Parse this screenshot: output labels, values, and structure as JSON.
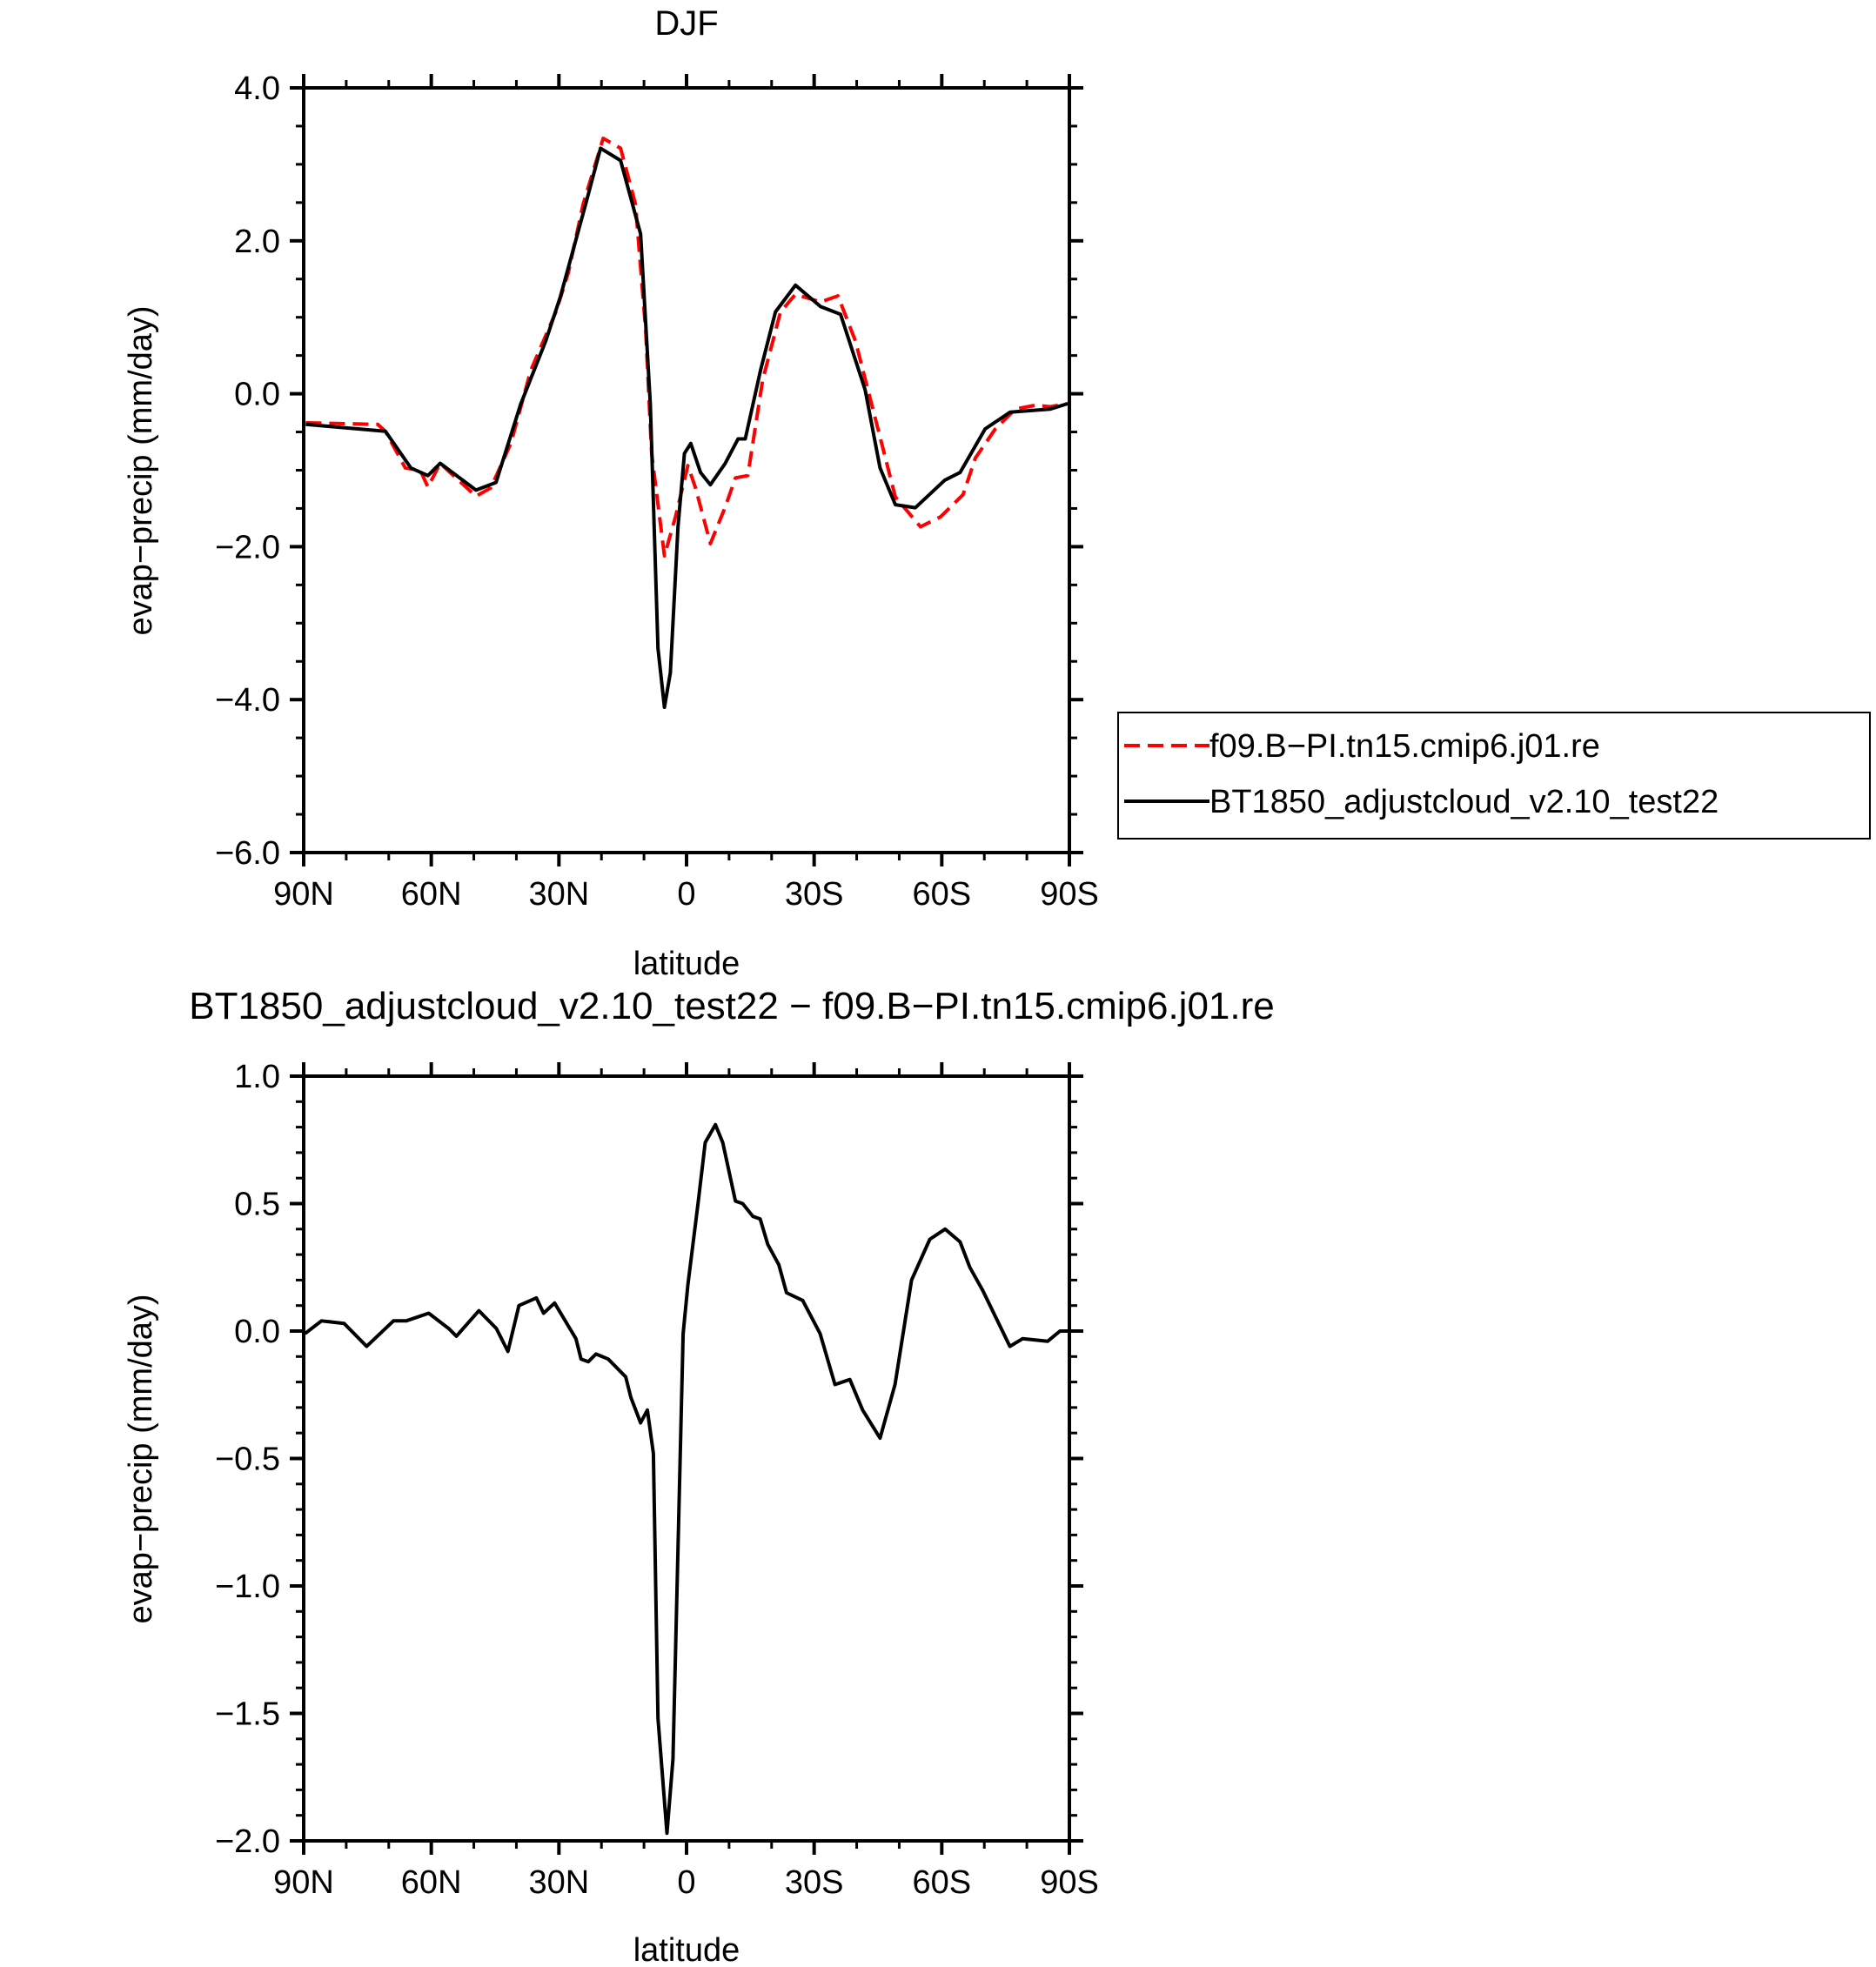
{
  "chart_data": [
    {
      "type": "line",
      "title": "DJF",
      "xlabel": "latitude",
      "ylabel": "evap−precip (mm/day)",
      "xlim": [
        90,
        -90
      ],
      "ylim": [
        -6,
        4
      ],
      "xticks": [
        {
          "v": 90,
          "label": "90N"
        },
        {
          "v": 60,
          "label": "60N"
        },
        {
          "v": 30,
          "label": "30N"
        },
        {
          "v": 0,
          "label": "0"
        },
        {
          "v": -30,
          "label": "30S"
        },
        {
          "v": -60,
          "label": "60S"
        },
        {
          "v": -90,
          "label": "90S"
        }
      ],
      "yticks": [
        {
          "v": 4,
          "label": "4.0"
        },
        {
          "v": 2,
          "label": "2.0"
        },
        {
          "v": 0,
          "label": "0.0"
        },
        {
          "v": -2,
          "label": "−2.0"
        },
        {
          "v": -4,
          "label": "−4.0"
        },
        {
          "v": -6,
          "label": "−6.0"
        }
      ],
      "x_minor_step": 10,
      "y_minor_step": 0.5,
      "legend_position": "right",
      "series": [
        {
          "name": "f09.B−PI.tn15.cmip6.j01.re",
          "color": "#ff0000",
          "dash": "dashed",
          "x": [
            89.5,
            72.6,
            70.8,
            66.1,
            62.6,
            60.8,
            57.9,
            49.5,
            46,
            41.3,
            36.6,
            30.7,
            27.8,
            24.3,
            19.6,
            15.5,
            12,
            9.6,
            8.2,
            5.2,
            2.6,
            -0.3,
            -2.1,
            -5.6,
            -9.1,
            -11.5,
            -14.4,
            -17.9,
            -22.1,
            -25.6,
            -31.5,
            -35.6,
            -39.7,
            -44.4,
            -49.1,
            -55,
            -59.7,
            -65,
            -67.9,
            -72.6,
            -77.3,
            -82,
            -85.5,
            -89.6
          ],
          "y": [
            -0.38,
            -0.4,
            -0.49,
            -0.97,
            -1.0,
            -1.22,
            -0.91,
            -1.34,
            -1.23,
            -0.65,
            0.31,
            1.07,
            1.58,
            2.48,
            3.34,
            3.21,
            2.48,
            0.82,
            -0.78,
            -2.12,
            -1.61,
            -0.94,
            -1.23,
            -1.96,
            -1.48,
            -1.1,
            -1.07,
            0.18,
            1.07,
            1.3,
            1.2,
            1.28,
            0.69,
            -0.33,
            -1.35,
            -1.74,
            -1.61,
            -1.32,
            -0.84,
            -0.46,
            -0.2,
            -0.15,
            -0.17,
            -0.13
          ]
        },
        {
          "name": "BT1850_adjustcloud_v2.10_test22",
          "color": "#000000",
          "dash": "solid",
          "x": [
            89.5,
            70.8,
            64.8,
            60.8,
            57.9,
            49.5,
            44.8,
            39,
            33.1,
            29.7,
            23.7,
            20.2,
            15.5,
            10.8,
            8.5,
            6.7,
            5.2,
            3.8,
            2.0,
            0.5,
            -1.0,
            -3.3,
            -5.6,
            -9.1,
            -12.1,
            -13.8,
            -17.4,
            -20.9,
            -25.6,
            -31.5,
            -36.2,
            -42,
            -45.5,
            -49.1,
            -53.8,
            -60.7,
            -64.3,
            -70.2,
            -76.1,
            -85.5,
            -89.6
          ],
          "y": [
            -0.4,
            -0.49,
            -0.97,
            -1.07,
            -0.91,
            -1.26,
            -1.16,
            -0.14,
            0.69,
            1.26,
            2.48,
            3.21,
            3.05,
            2.09,
            -0.14,
            -3.33,
            -4.1,
            -3.65,
            -1.74,
            -0.78,
            -0.65,
            -1.03,
            -1.19,
            -0.91,
            -0.59,
            -0.59,
            0.31,
            1.07,
            1.42,
            1.14,
            1.04,
            0.05,
            -0.97,
            -1.45,
            -1.49,
            -1.13,
            -1.03,
            -0.46,
            -0.24,
            -0.2,
            -0.13
          ]
        }
      ]
    },
    {
      "type": "line",
      "title": "BT1850_adjustcloud_v2.10_test22 − f09.B−PI.tn15.cmip6.j01.re",
      "xlabel": "latitude",
      "ylabel": "evap−precip (mm/day)",
      "xlim": [
        90,
        -90
      ],
      "ylim": [
        -2,
        1
      ],
      "xticks": [
        {
          "v": 90,
          "label": "90N"
        },
        {
          "v": 60,
          "label": "60N"
        },
        {
          "v": 30,
          "label": "30N"
        },
        {
          "v": 0,
          "label": "0"
        },
        {
          "v": -30,
          "label": "30S"
        },
        {
          "v": -60,
          "label": "60S"
        },
        {
          "v": -90,
          "label": "90S"
        }
      ],
      "yticks": [
        {
          "v": 1,
          "label": "1.0"
        },
        {
          "v": 0.5,
          "label": "0.5"
        },
        {
          "v": 0,
          "label": "0.0"
        },
        {
          "v": -0.5,
          "label": "−0.5"
        },
        {
          "v": -1,
          "label": "−1.0"
        },
        {
          "v": -1.5,
          "label": "−1.5"
        },
        {
          "v": -2,
          "label": "−2.0"
        }
      ],
      "x_minor_step": 10,
      "y_minor_step": 0.1,
      "series": [
        {
          "name": "difference",
          "color": "#000000",
          "dash": "solid",
          "x": [
            89.7,
            85.8,
            80.5,
            75.2,
            68.9,
            65.9,
            60.6,
            55.9,
            54.1,
            48.8,
            44.7,
            42,
            39.4,
            35.3,
            33.6,
            31,
            26,
            24.8,
            23.1,
            21.3,
            18.4,
            14.3,
            13.1,
            10.8,
            9.2,
            7.8,
            6.7,
            4.6,
            3.2,
            0.8,
            -0.3,
            -2.7,
            -4.4,
            -6.8,
            -8.5,
            -11.5,
            -13.2,
            -15.6,
            -17.3,
            -19.1,
            -21.7,
            -23.5,
            -27.3,
            -31.4,
            -34.9,
            -38.4,
            -41.4,
            -45.5,
            -49,
            -52.9,
            -57.2,
            -60.8,
            -64.3,
            -66.6,
            -69.6,
            -76,
            -79,
            -84.9,
            -87.8,
            -90
          ],
          "y": [
            -0.01,
            0.04,
            0.03,
            -0.06,
            0.04,
            0.04,
            0.07,
            0.01,
            -0.02,
            0.08,
            0.01,
            -0.08,
            0.1,
            0.13,
            0.07,
            0.11,
            -0.03,
            -0.11,
            -0.12,
            -0.09,
            -0.11,
            -0.18,
            -0.26,
            -0.36,
            -0.31,
            -0.48,
            -1.52,
            -1.97,
            -1.68,
            -0.01,
            0.18,
            0.5,
            0.74,
            0.81,
            0.74,
            0.51,
            0.5,
            0.45,
            0.44,
            0.34,
            0.26,
            0.15,
            0.12,
            -0.01,
            -0.21,
            -0.19,
            -0.31,
            -0.42,
            -0.21,
            0.2,
            0.36,
            0.4,
            0.35,
            0.25,
            0.16,
            -0.06,
            -0.03,
            -0.04,
            0.0,
            0.0
          ]
        }
      ]
    }
  ]
}
